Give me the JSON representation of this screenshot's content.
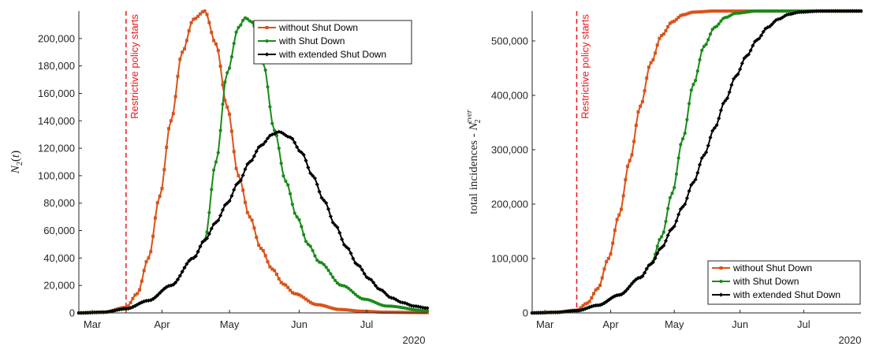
{
  "chart_data": [
    {
      "type": "line",
      "ylabel": "N_2(t)",
      "ylim": [
        0,
        220000
      ],
      "yticks": [
        0,
        20000,
        40000,
        60000,
        80000,
        100000,
        120000,
        140000,
        160000,
        180000,
        200000
      ],
      "ytick_labels": [
        "0",
        "20,000",
        "40,000",
        "60,000",
        "80,000",
        "100,000",
        "120,000",
        "140,000",
        "160,000",
        "180,000",
        "200,000"
      ],
      "xlim": [
        "2020-02-24",
        "2020-07-28"
      ],
      "xticks": [
        "2020-03-01",
        "2020-04-01",
        "2020-05-01",
        "2020-06-01",
        "2020-07-01"
      ],
      "xtick_labels": [
        "Mar",
        "Apr",
        "May",
        "Jun",
        "Jul"
      ],
      "year_label": "2020",
      "policy": {
        "date": "2020-03-16",
        "label": "Restrictive policy starts",
        "color": "#e8191e"
      },
      "legend": {
        "location": "top-right"
      },
      "series": [
        {
          "name": "without Shut Down",
          "color": "#d95319",
          "marker": "square",
          "points": [
            [
              "2020-02-24",
              0
            ],
            [
              "2020-03-06",
              500
            ],
            [
              "2020-03-16",
              4000
            ],
            [
              "2020-03-21",
              14000
            ],
            [
              "2020-03-26",
              40000
            ],
            [
              "2020-03-31",
              85000
            ],
            [
              "2020-04-05",
              140000
            ],
            [
              "2020-04-10",
              190000
            ],
            [
              "2020-04-15",
              214000
            ],
            [
              "2020-04-20",
              220000
            ],
            [
              "2020-04-25",
              196000
            ],
            [
              "2020-04-30",
              150000
            ],
            [
              "2020-05-05",
              100000
            ],
            [
              "2020-05-10",
              70000
            ],
            [
              "2020-05-15",
              47000
            ],
            [
              "2020-05-20",
              32000
            ],
            [
              "2020-05-25",
              21000
            ],
            [
              "2020-05-30",
              14000
            ],
            [
              "2020-06-09",
              6000
            ],
            [
              "2020-06-19",
              2500
            ],
            [
              "2020-06-29",
              1200
            ],
            [
              "2020-07-09",
              500
            ],
            [
              "2020-07-28",
              200
            ]
          ]
        },
        {
          "name": "with Shut Down",
          "color": "#1a8a1a",
          "marker": "dot",
          "points": [
            [
              "2020-02-24",
              0
            ],
            [
              "2020-03-06",
              500
            ],
            [
              "2020-03-16",
              3000
            ],
            [
              "2020-03-26",
              9000
            ],
            [
              "2020-04-05",
              20000
            ],
            [
              "2020-04-15",
              40000
            ],
            [
              "2020-04-20",
              53000
            ],
            [
              "2020-04-25",
              110000
            ],
            [
              "2020-04-30",
              175000
            ],
            [
              "2020-05-05",
              208000
            ],
            [
              "2020-05-08",
              215000
            ],
            [
              "2020-05-11",
              212000
            ],
            [
              "2020-05-16",
              182000
            ],
            [
              "2020-05-21",
              133000
            ],
            [
              "2020-05-26",
              96000
            ],
            [
              "2020-05-31",
              70000
            ],
            [
              "2020-06-05",
              50000
            ],
            [
              "2020-06-10",
              37000
            ],
            [
              "2020-06-20",
              20000
            ],
            [
              "2020-06-30",
              10000
            ],
            [
              "2020-07-10",
              5000
            ],
            [
              "2020-07-28",
              1500
            ]
          ]
        },
        {
          "name": "with extended Shut Down",
          "color": "#000000",
          "marker": "diamond",
          "points": [
            [
              "2020-02-24",
              0
            ],
            [
              "2020-03-06",
              500
            ],
            [
              "2020-03-16",
              3000
            ],
            [
              "2020-03-26",
              9000
            ],
            [
              "2020-04-05",
              20000
            ],
            [
              "2020-04-15",
              40000
            ],
            [
              "2020-04-20",
              53000
            ],
            [
              "2020-04-25",
              66000
            ],
            [
              "2020-04-30",
              80000
            ],
            [
              "2020-05-05",
              95000
            ],
            [
              "2020-05-10",
              110000
            ],
            [
              "2020-05-15",
              122000
            ],
            [
              "2020-05-20",
              130000
            ],
            [
              "2020-05-23",
              132000
            ],
            [
              "2020-05-28",
              128000
            ],
            [
              "2020-06-02",
              117000
            ],
            [
              "2020-06-07",
              100000
            ],
            [
              "2020-06-12",
              82000
            ],
            [
              "2020-06-17",
              64000
            ],
            [
              "2020-06-22",
              48000
            ],
            [
              "2020-06-27",
              35000
            ],
            [
              "2020-07-02",
              25000
            ],
            [
              "2020-07-07",
              17000
            ],
            [
              "2020-07-12",
              11000
            ],
            [
              "2020-07-17",
              7500
            ],
            [
              "2020-07-22",
              5000
            ],
            [
              "2020-07-28",
              3500
            ]
          ]
        }
      ]
    },
    {
      "type": "line",
      "ylabel": "total incidences - N_2^ever",
      "ylim": [
        0,
        555000
      ],
      "yticks": [
        0,
        100000,
        200000,
        300000,
        400000,
        500000
      ],
      "ytick_labels": [
        "0",
        "100,000",
        "200,000",
        "300,000",
        "400,000",
        "500,000"
      ],
      "xlim": [
        "2020-02-24",
        "2020-07-28"
      ],
      "xticks": [
        "2020-03-01",
        "2020-04-01",
        "2020-05-01",
        "2020-06-01",
        "2020-07-01"
      ],
      "xtick_labels": [
        "Mar",
        "Apr",
        "May",
        "Jun",
        "Jul"
      ],
      "year_label": "2020",
      "policy": {
        "date": "2020-03-16",
        "label": "Restrictive policy starts",
        "color": "#e8191e"
      },
      "legend": {
        "location": "bottom-right"
      },
      "series": [
        {
          "name": "without Shut Down",
          "color": "#d95319",
          "marker": "square",
          "points": [
            [
              "2020-02-24",
              0
            ],
            [
              "2020-03-06",
              1000
            ],
            [
              "2020-03-16",
              5000
            ],
            [
              "2020-03-21",
              18000
            ],
            [
              "2020-03-26",
              45000
            ],
            [
              "2020-03-31",
              100000
            ],
            [
              "2020-04-05",
              180000
            ],
            [
              "2020-04-10",
              280000
            ],
            [
              "2020-04-15",
              380000
            ],
            [
              "2020-04-20",
              460000
            ],
            [
              "2020-04-25",
              510000
            ],
            [
              "2020-04-30",
              535000
            ],
            [
              "2020-05-05",
              548000
            ],
            [
              "2020-05-10",
              553000
            ],
            [
              "2020-05-20",
              555000
            ],
            [
              "2020-07-28",
              555000
            ]
          ]
        },
        {
          "name": "with Shut Down",
          "color": "#1a8a1a",
          "marker": "dot",
          "points": [
            [
              "2020-02-24",
              0
            ],
            [
              "2020-03-06",
              1000
            ],
            [
              "2020-03-16",
              4000
            ],
            [
              "2020-03-26",
              14000
            ],
            [
              "2020-04-05",
              33000
            ],
            [
              "2020-04-15",
              65000
            ],
            [
              "2020-04-20",
              90000
            ],
            [
              "2020-04-25",
              140000
            ],
            [
              "2020-04-30",
              220000
            ],
            [
              "2020-05-05",
              320000
            ],
            [
              "2020-05-10",
              420000
            ],
            [
              "2020-05-15",
              490000
            ],
            [
              "2020-05-20",
              525000
            ],
            [
              "2020-05-25",
              543000
            ],
            [
              "2020-05-30",
              551000
            ],
            [
              "2020-06-09",
              555000
            ],
            [
              "2020-07-28",
              555000
            ]
          ]
        },
        {
          "name": "with extended Shut Down",
          "color": "#000000",
          "marker": "diamond",
          "points": [
            [
              "2020-02-24",
              0
            ],
            [
              "2020-03-06",
              1000
            ],
            [
              "2020-03-16",
              4000
            ],
            [
              "2020-03-26",
              14000
            ],
            [
              "2020-04-05",
              33000
            ],
            [
              "2020-04-15",
              65000
            ],
            [
              "2020-04-20",
              90000
            ],
            [
              "2020-04-25",
              120000
            ],
            [
              "2020-04-30",
              155000
            ],
            [
              "2020-05-05",
              195000
            ],
            [
              "2020-05-10",
              240000
            ],
            [
              "2020-05-15",
              290000
            ],
            [
              "2020-05-20",
              340000
            ],
            [
              "2020-05-25",
              390000
            ],
            [
              "2020-05-30",
              435000
            ],
            [
              "2020-06-04",
              472000
            ],
            [
              "2020-06-09",
              502000
            ],
            [
              "2020-06-14",
              525000
            ],
            [
              "2020-06-19",
              540000
            ],
            [
              "2020-06-24",
              549000
            ],
            [
              "2020-06-29",
              553000
            ],
            [
              "2020-07-09",
              555000
            ],
            [
              "2020-07-28",
              555000
            ]
          ]
        }
      ]
    }
  ]
}
